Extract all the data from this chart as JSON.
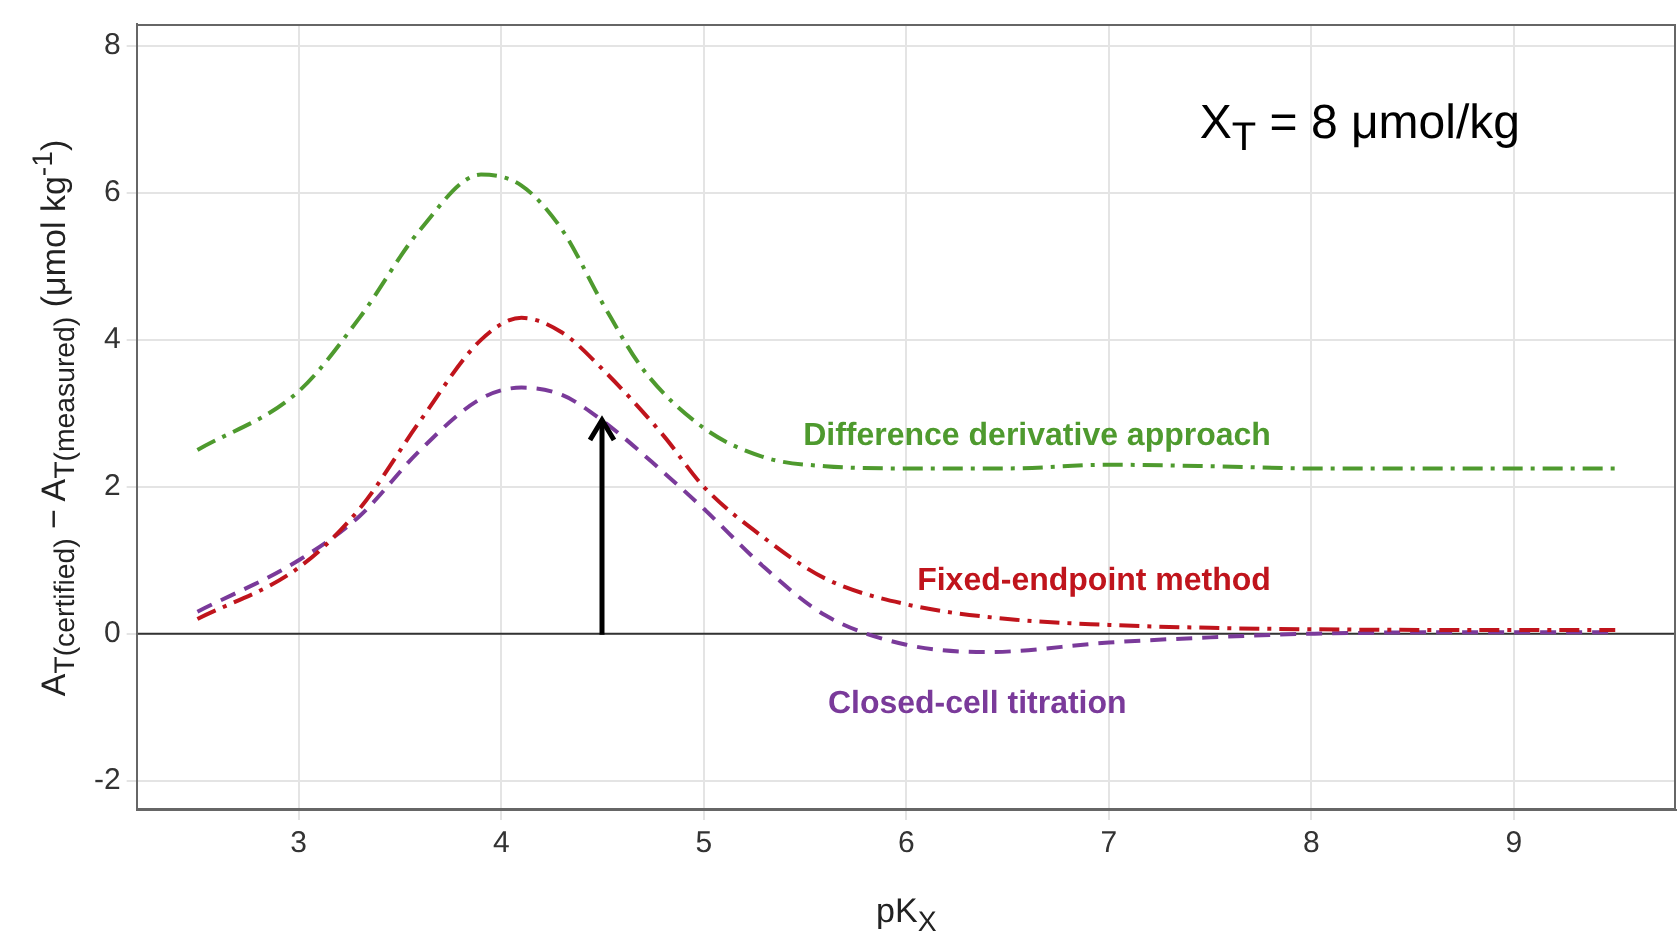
{
  "chart_data": {
    "type": "line",
    "xlabel": "pK$_{X}$",
    "ylabel": "A$_{T(certified)}$ − A$_{T(measured)}$ (μmol kg$^{-1}$)",
    "annotations": [
      "X$_{T}$ = 8 μmol/kg"
    ],
    "xlim": [
      2.2,
      9.8
    ],
    "xticks": [
      3,
      4,
      5,
      6,
      7,
      8,
      9
    ],
    "ylim": [
      -2.4,
      8.3
    ],
    "yticks": [
      -2,
      0,
      2,
      4,
      6,
      8
    ],
    "grid": true,
    "legend": false,
    "marker": "none",
    "ref_lines": [
      {
        "axis": "y",
        "value": 0,
        "color": "#333333"
      }
    ],
    "series": [
      {
        "name": "Difference derivative approach",
        "color": "#4e9a2e",
        "line_style": "dashdot",
        "x": [
          2.5,
          3,
          3.3,
          3.6,
          3.9,
          4.1,
          4.3,
          4.5,
          4.7,
          5,
          5.3,
          5.6,
          6,
          6.5,
          7,
          7.5,
          8,
          8.5,
          9,
          9.5
        ],
        "values": [
          2.5,
          3.3,
          4.3,
          5.5,
          6.25,
          6.1,
          5.5,
          4.5,
          3.6,
          2.8,
          2.4,
          2.28,
          2.25,
          2.25,
          2.3,
          2.28,
          2.25,
          2.25,
          2.25,
          2.25
        ]
      },
      {
        "name": "Fixed-endpoint method",
        "color": "#c0141c",
        "line_style": "dashdot",
        "x": [
          2.5,
          3,
          3.3,
          3.6,
          3.9,
          4.1,
          4.3,
          4.5,
          4.8,
          5,
          5.3,
          5.6,
          6,
          6.5,
          7,
          7.5,
          8,
          9,
          9.5
        ],
        "values": [
          0.2,
          0.9,
          1.7,
          2.9,
          4.0,
          4.3,
          4.1,
          3.6,
          2.7,
          2.0,
          1.3,
          0.75,
          0.4,
          0.2,
          0.12,
          0.08,
          0.06,
          0.05,
          0.05
        ]
      },
      {
        "name": "Closed-cell titration",
        "color": "#7a3a9a",
        "line_style": "dashed",
        "x": [
          2.5,
          3,
          3.3,
          3.6,
          3.9,
          4.1,
          4.3,
          4.5,
          4.8,
          5,
          5.3,
          5.6,
          6,
          6.4,
          7,
          7.5,
          8,
          9,
          9.5
        ],
        "values": [
          0.3,
          1.0,
          1.6,
          2.5,
          3.2,
          3.35,
          3.25,
          2.9,
          2.2,
          1.7,
          0.9,
          0.25,
          -0.15,
          -0.25,
          -0.12,
          -0.05,
          0,
          0.02,
          0.02
        ]
      }
    ]
  }
}
